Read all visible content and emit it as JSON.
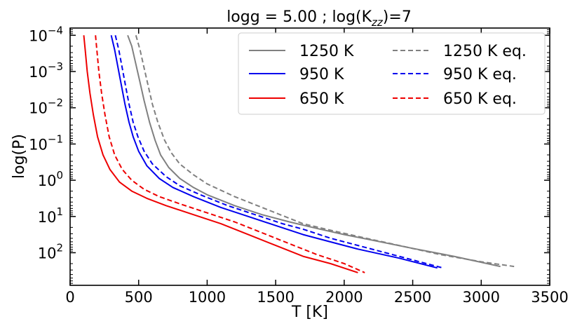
{
  "chart_data": {
    "type": "line",
    "title": "logg = 5.00 ; log(K",
    "title_sub": "zz",
    "title_tail": ")=7",
    "xlabel": "T [K]",
    "ylabel": "log(P)",
    "xlim": [
      0,
      3500
    ],
    "ylim": [
      -4.2,
      2.9
    ],
    "y_inverted": true,
    "x_ticks": [
      0,
      500,
      1000,
      1500,
      2000,
      2500,
      3000,
      3500
    ],
    "x_tick_labels": [
      "0",
      "500",
      "1000",
      "1500",
      "2000",
      "2500",
      "3000",
      "3500"
    ],
    "y_ticks": [
      -4,
      -3,
      -2,
      -1,
      0,
      1,
      2
    ],
    "y_tick_bases": [
      "10",
      "10",
      "10",
      "10",
      "10",
      "10",
      "10"
    ],
    "y_tick_exponents": [
      "−4",
      "−3",
      "−2",
      "−1",
      "0",
      "1",
      "2"
    ],
    "legend": {
      "placement": "top-right",
      "columns": 2
    },
    "series": [
      {
        "name": "1250 K",
        "color": "#808080",
        "dash": "solid",
        "x": [
          420,
          450,
          480,
          510,
          540,
          580,
          620,
          660,
          720,
          800,
          900,
          1000,
          1200,
          1400,
          1600,
          1800,
          2000,
          2200,
          2500,
          2800,
          3140
        ],
        "y": [
          -4.0,
          -3.7,
          -3.2,
          -2.7,
          -2.2,
          -1.6,
          -1.1,
          -0.7,
          -0.35,
          -0.05,
          0.2,
          0.4,
          0.7,
          0.95,
          1.15,
          1.33,
          1.5,
          1.65,
          1.88,
          2.1,
          2.38
        ]
      },
      {
        "name": "950 K",
        "color": "#0000ee",
        "dash": "solid",
        "x": [
          300,
          325,
          350,
          375,
          400,
          430,
          460,
          500,
          560,
          650,
          750,
          900,
          1100,
          1300,
          1500,
          1700,
          1900,
          2100,
          2400,
          2680
        ],
        "y": [
          -4.0,
          -3.6,
          -3.1,
          -2.6,
          -2.1,
          -1.6,
          -1.2,
          -0.8,
          -0.4,
          -0.05,
          0.2,
          0.45,
          0.75,
          1.0,
          1.25,
          1.5,
          1.7,
          1.9,
          2.15,
          2.42
        ]
      },
      {
        "name": "650 K",
        "color": "#ee0000",
        "dash": "solid",
        "x": [
          100,
          110,
          125,
          145,
          170,
          200,
          240,
          290,
          360,
          450,
          560,
          700,
          900,
          1100,
          1300,
          1500,
          1700,
          1900,
          2100
        ],
        "y": [
          -4.0,
          -3.6,
          -3.0,
          -2.4,
          -1.8,
          -1.2,
          -0.7,
          -0.3,
          0.05,
          0.3,
          0.5,
          0.7,
          0.95,
          1.2,
          1.5,
          1.8,
          2.1,
          2.3,
          2.55
        ]
      },
      {
        "name": "1250 K eq.",
        "color": "#808080",
        "dash": "dashed",
        "x": [
          480,
          510,
          540,
          570,
          600,
          640,
          690,
          740,
          800,
          900,
          1000,
          1200,
          1400,
          1600,
          1700,
          1900,
          2100,
          2400,
          2700,
          3000,
          3240
        ],
        "y": [
          -4.0,
          -3.6,
          -3.1,
          -2.6,
          -2.1,
          -1.6,
          -1.1,
          -0.75,
          -0.45,
          -0.15,
          0.1,
          0.45,
          0.75,
          1.05,
          1.2,
          1.38,
          1.55,
          1.8,
          2.05,
          2.25,
          2.38
        ]
      },
      {
        "name": "950 K eq.",
        "color": "#0000ee",
        "dash": "dashed",
        "x": [
          330,
          355,
          380,
          405,
          430,
          460,
          495,
          540,
          600,
          700,
          800,
          950,
          1150,
          1350,
          1550,
          1700,
          1900,
          2100,
          2400,
          2720
        ],
        "y": [
          -4.0,
          -3.6,
          -3.1,
          -2.6,
          -2.1,
          -1.6,
          -1.2,
          -0.8,
          -0.45,
          -0.1,
          0.15,
          0.4,
          0.7,
          0.95,
          1.2,
          1.35,
          1.6,
          1.8,
          2.1,
          2.42
        ]
      },
      {
        "name": "650 K eq.",
        "color": "#ee0000",
        "dash": "dashed",
        "x": [
          185,
          195,
          210,
          230,
          255,
          285,
          325,
          380,
          450,
          540,
          650,
          800,
          1000,
          1200,
          1400,
          1600,
          1800,
          2000,
          2150
        ],
        "y": [
          -4.0,
          -3.6,
          -3.0,
          -2.4,
          -1.8,
          -1.2,
          -0.7,
          -0.3,
          0.0,
          0.25,
          0.45,
          0.65,
          0.9,
          1.15,
          1.45,
          1.75,
          2.05,
          2.3,
          2.55
        ]
      }
    ]
  }
}
